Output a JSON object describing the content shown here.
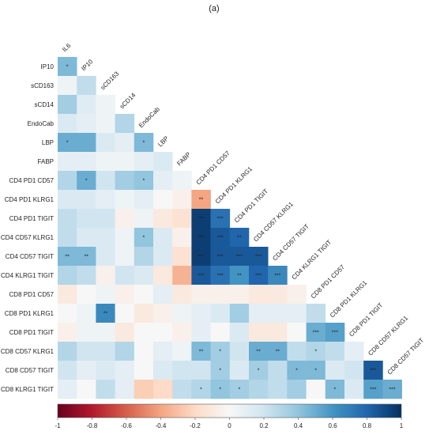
{
  "chart_data": {
    "type": "heatmap",
    "panel_label": "(a)",
    "variables": [
      "IL6",
      "IP10",
      "sCD163",
      "sCD14",
      "EndoCab",
      "LBP",
      "FABP",
      "CD4 PD1 CD57",
      "CD4 PD1 KLRG1",
      "CD4 PD1 TIGIT",
      "CD4 CD57 KLRG1",
      "CD4 CD57 TIGIT",
      "CD4 KLRG1 TIGIT",
      "CD8 PD1 CD57",
      "CD8 PD1 KLRG1",
      "CD8 PD1 TIGIT",
      "CD8 CD57 KLRG1",
      "CD8 CD57 TIGIT",
      "CD8 KLRG1 TIGIT"
    ],
    "row_labels": [
      "IP10",
      "sCD163",
      "sCD14",
      "EndoCab",
      "LBP",
      "FABP",
      "CD4 PD1 CD57",
      "CD4 PD1 KLRG1",
      "CD4 PD1 TIGIT",
      "CD4 CD57 KLRG1",
      "CD4 CD57 TIGIT",
      "CD4 KLRG1 TIGIT",
      "CD8 PD1 CD57",
      "CD8 PD1 KLRG1",
      "CD8 PD1 TIGIT",
      "CD8 CD57 KLRG1",
      "CD8 CD57 TIGIT",
      "CD8 KLRG1 TIGIT"
    ],
    "column_labels": [
      "IL6",
      "IP10",
      "sCD163",
      "sCD14",
      "EndoCab",
      "LBP",
      "FABP",
      "CD4 PD1 CD57",
      "CD4 PD1 KLRG1",
      "CD4 PD1 TIGIT",
      "CD4 CD57 KLRG1",
      "CD4 CD57 TIGIT",
      "CD4 KLRG1 TIGIT",
      "CD8 PD1 CD57",
      "CD8 PD1 KLRG1",
      "CD8 PD1 TIGIT",
      "CD8 CD57 KLRG1",
      "CD8 CD57 TIGIT"
    ],
    "values": [
      [
        0.45
      ],
      [
        0.05,
        0.25
      ],
      [
        0.35,
        0.12,
        0.05
      ],
      [
        0.15,
        0.1,
        0.05,
        0.3
      ],
      [
        0.5,
        0.5,
        0.15,
        0.1,
        0.45
      ],
      [
        0.1,
        0.1,
        0.05,
        0.05,
        0.1,
        0.15
      ],
      [
        0.3,
        0.5,
        0.2,
        0.35,
        0.4,
        0.1,
        0.05
      ],
      [
        0.15,
        0.15,
        0.1,
        0.05,
        0.1,
        0.0,
        -0.05,
        -0.4
      ],
      [
        0.25,
        0.2,
        0.2,
        -0.05,
        0.05,
        -0.1,
        -0.15,
        0.95,
        0.75
      ],
      [
        0.25,
        0.15,
        0.15,
        0.05,
        0.4,
        0.15,
        -0.05,
        0.95,
        0.85,
        0.8
      ],
      [
        0.45,
        0.45,
        0.15,
        0.05,
        0.3,
        0.15,
        -0.15,
        0.95,
        0.85,
        0.85,
        0.85
      ],
      [
        0.3,
        0.25,
        -0.05,
        0.2,
        0.15,
        -0.1,
        -0.35,
        0.85,
        0.75,
        0.6,
        0.8,
        0.65
      ],
      [
        -0.1,
        0.0,
        0.05,
        -0.05,
        0.0,
        0.1,
        -0.1,
        -0.05,
        -0.05,
        -0.05,
        -0.1,
        -0.1,
        -0.05
      ],
      [
        0.0,
        0.05,
        0.65,
        0.0,
        -0.1,
        -0.05,
        0.05,
        0.1,
        0.15,
        0.35,
        0.1,
        0.1,
        0.1,
        0.25
      ],
      [
        -0.05,
        0.05,
        0.05,
        -0.1,
        0.0,
        0.0,
        -0.05,
        0.1,
        0.0,
        0.15,
        -0.1,
        -0.1,
        0.0,
        0.5,
        0.55
      ],
      [
        0.3,
        0.2,
        0.2,
        0.3,
        0.0,
        0.1,
        0.05,
        0.45,
        0.35,
        0.2,
        0.5,
        0.5,
        0.25,
        0.3,
        0.25,
        0.1
      ],
      [
        0.2,
        0.1,
        0.15,
        0.1,
        0.0,
        0.15,
        0.2,
        0.2,
        0.35,
        0.15,
        0.35,
        0.25,
        0.45,
        0.45,
        0.15,
        0.2,
        0.85
      ],
      [
        0.1,
        0.0,
        0.25,
        0.1,
        -0.25,
        -0.2,
        0.25,
        0.3,
        0.4,
        0.35,
        0.3,
        0.25,
        0.35,
        0.0,
        0.45,
        0.15,
        0.55,
        0.5
      ]
    ],
    "significance": [
      [
        "*"
      ],
      [
        "",
        ""
      ],
      [
        "",
        "",
        ""
      ],
      [
        "",
        "",
        "",
        ""
      ],
      [
        "*",
        "",
        "",
        "",
        "*"
      ],
      [
        "",
        "",
        "",
        "",
        "",
        ""
      ],
      [
        "",
        "*",
        "",
        "",
        "*",
        "",
        ""
      ],
      [
        "",
        "",
        "",
        "",
        "",
        "",
        "",
        "**"
      ],
      [
        "",
        "",
        "",
        "",
        "",
        "",
        "",
        "***",
        "***"
      ],
      [
        "",
        "",
        "",
        "",
        "*",
        "",
        "",
        "***",
        "***",
        "**"
      ],
      [
        "**",
        "**",
        "",
        "",
        "",
        "",
        "",
        "***",
        "***",
        "***",
        "***"
      ],
      [
        "",
        "",
        "",
        "",
        "",
        "",
        "",
        "***",
        "***",
        "**",
        "***",
        "***"
      ],
      [
        "",
        "",
        "",
        "",
        "",
        "",
        "",
        "",
        "",
        "",
        "",
        "",
        ""
      ],
      [
        "",
        "",
        "**",
        "",
        "",
        "",
        "",
        "",
        "",
        "",
        "",
        "",
        "",
        ""
      ],
      [
        "",
        "",
        "",
        "",
        "",
        "",
        "",
        "",
        "",
        "",
        "",
        "",
        "",
        "***",
        "***"
      ],
      [
        "",
        "",
        "",
        "",
        "",
        "",
        "",
        "**",
        "*",
        "",
        "**",
        "**",
        "",
        "*",
        "",
        ""
      ],
      [
        "",
        "",
        "",
        "",
        "",
        "",
        "",
        "",
        "*",
        "",
        "*",
        "",
        "*",
        "*",
        "",
        "",
        "***"
      ],
      [
        "",
        "",
        "",
        "",
        "",
        "",
        "",
        "*",
        "*",
        "*",
        "",
        "",
        "",
        "",
        "*",
        "",
        "***",
        "***"
      ]
    ],
    "colorbar": {
      "min": -1,
      "max": 1,
      "ticks": [
        "-1",
        "-0.8",
        "-0.6",
        "-0.4",
        "-0.2",
        "0",
        "0.2",
        "0.4",
        "0.6",
        "0.8",
        "1"
      ],
      "colors": {
        "negative": "#67001f",
        "neutral": "#f7f7f7",
        "positive": "#053061"
      }
    }
  }
}
